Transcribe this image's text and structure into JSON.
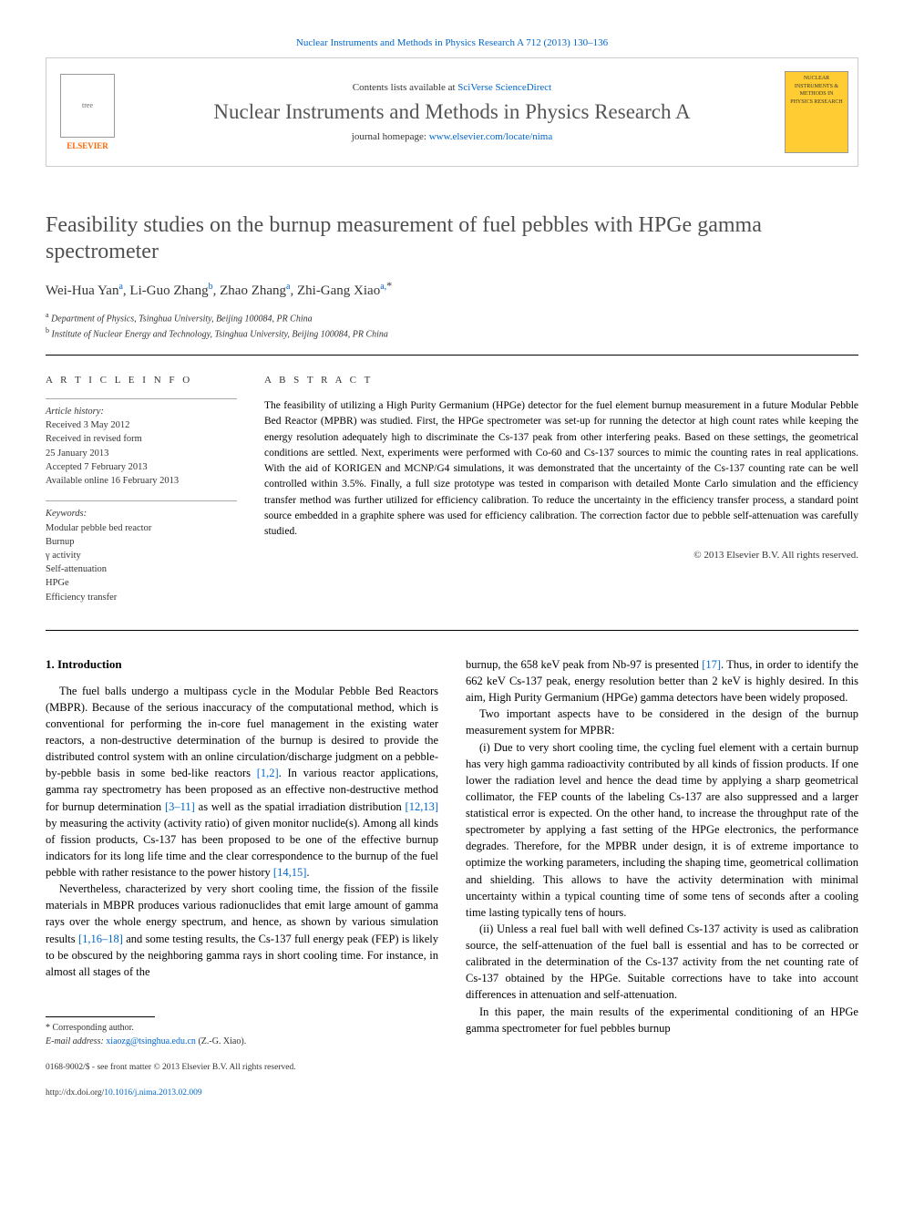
{
  "top_citation": "Nuclear Instruments and Methods in Physics Research A 712 (2013) 130–136",
  "header": {
    "contents_text": "Contents lists available at ",
    "contents_link": "SciVerse ScienceDirect",
    "journal_name": "Nuclear Instruments and Methods in Physics Research A",
    "homepage_text": "journal homepage: ",
    "homepage_link": "www.elsevier.com/locate/nima",
    "publisher": "ELSEVIER",
    "cover_text": "NUCLEAR INSTRUMENTS & METHODS IN PHYSICS RESEARCH"
  },
  "title": "Feasibility studies on the burnup measurement of fuel pebbles with HPGe gamma spectrometer",
  "authors": {
    "list": "Wei-Hua Yan",
    "a1_sup": "a",
    "a2": ", Li-Guo Zhang",
    "a2_sup": "b",
    "a3": ", Zhao Zhang",
    "a3_sup": "a",
    "a4": ", Zhi-Gang Xiao",
    "a4_sup": "a,",
    "star": "*"
  },
  "affiliations": {
    "a_sup": "a",
    "a": " Department of Physics, Tsinghua University, Beijing 100084, PR China",
    "b_sup": "b",
    "b": " Institute of Nuclear Energy and Technology, Tsinghua University, Beijing 100084, PR China"
  },
  "info": {
    "label": "A R T I C L E   I N F O",
    "history_label": "Article history:",
    "h1": "Received 3 May 2012",
    "h2": "Received in revised form",
    "h3": "25 January 2013",
    "h4": "Accepted 7 February 2013",
    "h5": "Available online 16 February 2013",
    "keywords_label": "Keywords:",
    "k1": "Modular pebble bed reactor",
    "k2": "Burnup",
    "k3": "γ activity",
    "k4": "Self-attenuation",
    "k5": "HPGe",
    "k6": "Efficiency transfer"
  },
  "abstract": {
    "label": "A B S T R A C T",
    "text": "The feasibility of utilizing a High Purity Germanium (HPGe) detector for the fuel element burnup measurement in a future Modular Pebble Bed Reactor (MPBR) was studied. First, the HPGe spectrometer was set-up for running the detector at high count rates while keeping the energy resolution adequately high to discriminate the Cs-137 peak from other interfering peaks. Based on these settings, the geometrical conditions are settled. Next, experiments were performed with Co-60 and Cs-137 sources to mimic the counting rates in real applications. With the aid of KORIGEN and MCNP/G4 simulations, it was demonstrated that the uncertainty of the Cs-137 counting rate can be well controlled within 3.5%. Finally, a full size prototype was tested in comparison with detailed Monte Carlo simulation and the efficiency transfer method was further utilized for efficiency calibration. To reduce the uncertainty in the efficiency transfer process, a standard point source embedded in a graphite sphere was used for efficiency calibration. The correction factor due to pebble self-attenuation was carefully studied.",
    "copyright": "© 2013 Elsevier B.V. All rights reserved."
  },
  "body": {
    "heading1": "1.  Introduction",
    "p1a": "The fuel balls undergo a multipass cycle in the Modular Pebble Bed Reactors (MBPR). Because of the serious inaccuracy of the computational method, which is conventional for performing the in-core fuel management in the existing water reactors, a non-destructive determination of the burnup is desired to provide the distributed control system with an online circulation/discharge judgment on a pebble-by-pebble basis in some bed-like reactors ",
    "c1": "[1,2]",
    "p1b": ". In various reactor applications, gamma ray spectrometry has been proposed as an effective non-destructive method for burnup determination ",
    "c2": "[3–11]",
    "p1c": " as well as the spatial irradiation distribution ",
    "c3": "[12,13]",
    "p1d": " by measuring the activity (activity ratio) of given monitor nuclide(s). Among all kinds of fission products, Cs-137 has been proposed to be one of the effective burnup indicators for its long life time and the clear correspondence to the burnup of the fuel pebble with rather resistance to the power history ",
    "c4": "[14,15]",
    "p1e": ".",
    "p2a": "Nevertheless, characterized by very short cooling time, the fission of the fissile materials in MBPR produces various radionuclides that emit large amount of gamma rays over the whole energy spectrum, and hence, as shown by various simulation results ",
    "c5": "[1,16–18]",
    "p2b": " and some testing results, the Cs-137 full energy peak (FEP) is likely to be obscured by the neighboring gamma rays in short cooling time. For instance, in almost all stages of the",
    "p3a": "burnup, the 658 keV peak from Nb-97 is presented ",
    "c6": "[17]",
    "p3b": ". Thus, in order to identify the 662 keV Cs-137 peak, energy resolution better than 2 keV is highly desired. In this aim, High Purity Germanium (HPGe) gamma detectors have been widely proposed.",
    "p4": "Two important aspects have to be considered in the design of the burnup measurement system for MPBR:",
    "p5": "(i) Due to very short cooling time, the cycling fuel element with a certain burnup has very high gamma radioactivity contributed by all kinds of fission products. If one lower the radiation level and hence the dead time by applying a sharp geometrical collimator, the FEP counts of the labeling Cs-137 are also suppressed and a larger statistical error is expected. On the other hand, to increase the throughput rate of the spectrometer by applying a fast setting of the HPGe electronics, the performance degrades. Therefore, for the MPBR under design, it is of extreme importance to optimize the working parameters, including the shaping time, geometrical collimation and shielding. This allows to have the activity determination with minimal uncertainty within a typical counting time of some tens of seconds after a cooling time lasting typically tens of hours.",
    "p6": "(ii) Unless a real fuel ball with well defined Cs-137 activity is used as calibration source, the self-attenuation of the fuel ball is essential and has to be corrected or calibrated in the determination of the Cs-137 activity from the net counting rate of Cs-137 obtained by the HPGe. Suitable corrections have to take into account differences in attenuation and self-attenuation.",
    "p7": "In this paper, the main results of the experimental conditioning of an HPGe gamma spectrometer for fuel pebbles burnup"
  },
  "footer": {
    "corresponding": "* Corresponding author.",
    "email_label": "E-mail address: ",
    "email": "xiaozg@tsinghua.edu.cn",
    "email_suffix": " (Z.-G. Xiao).",
    "issn": "0168-9002/$ - see front matter © 2013 Elsevier B.V. All rights reserved.",
    "doi_label": "http://dx.doi.org/",
    "doi": "10.1016/j.nima.2013.02.009"
  },
  "colors": {
    "link": "#0066cc",
    "text": "#000000",
    "muted": "#333333",
    "title_gray": "#505050",
    "orange": "#ff6600",
    "cover_bg": "#ffcc33"
  }
}
